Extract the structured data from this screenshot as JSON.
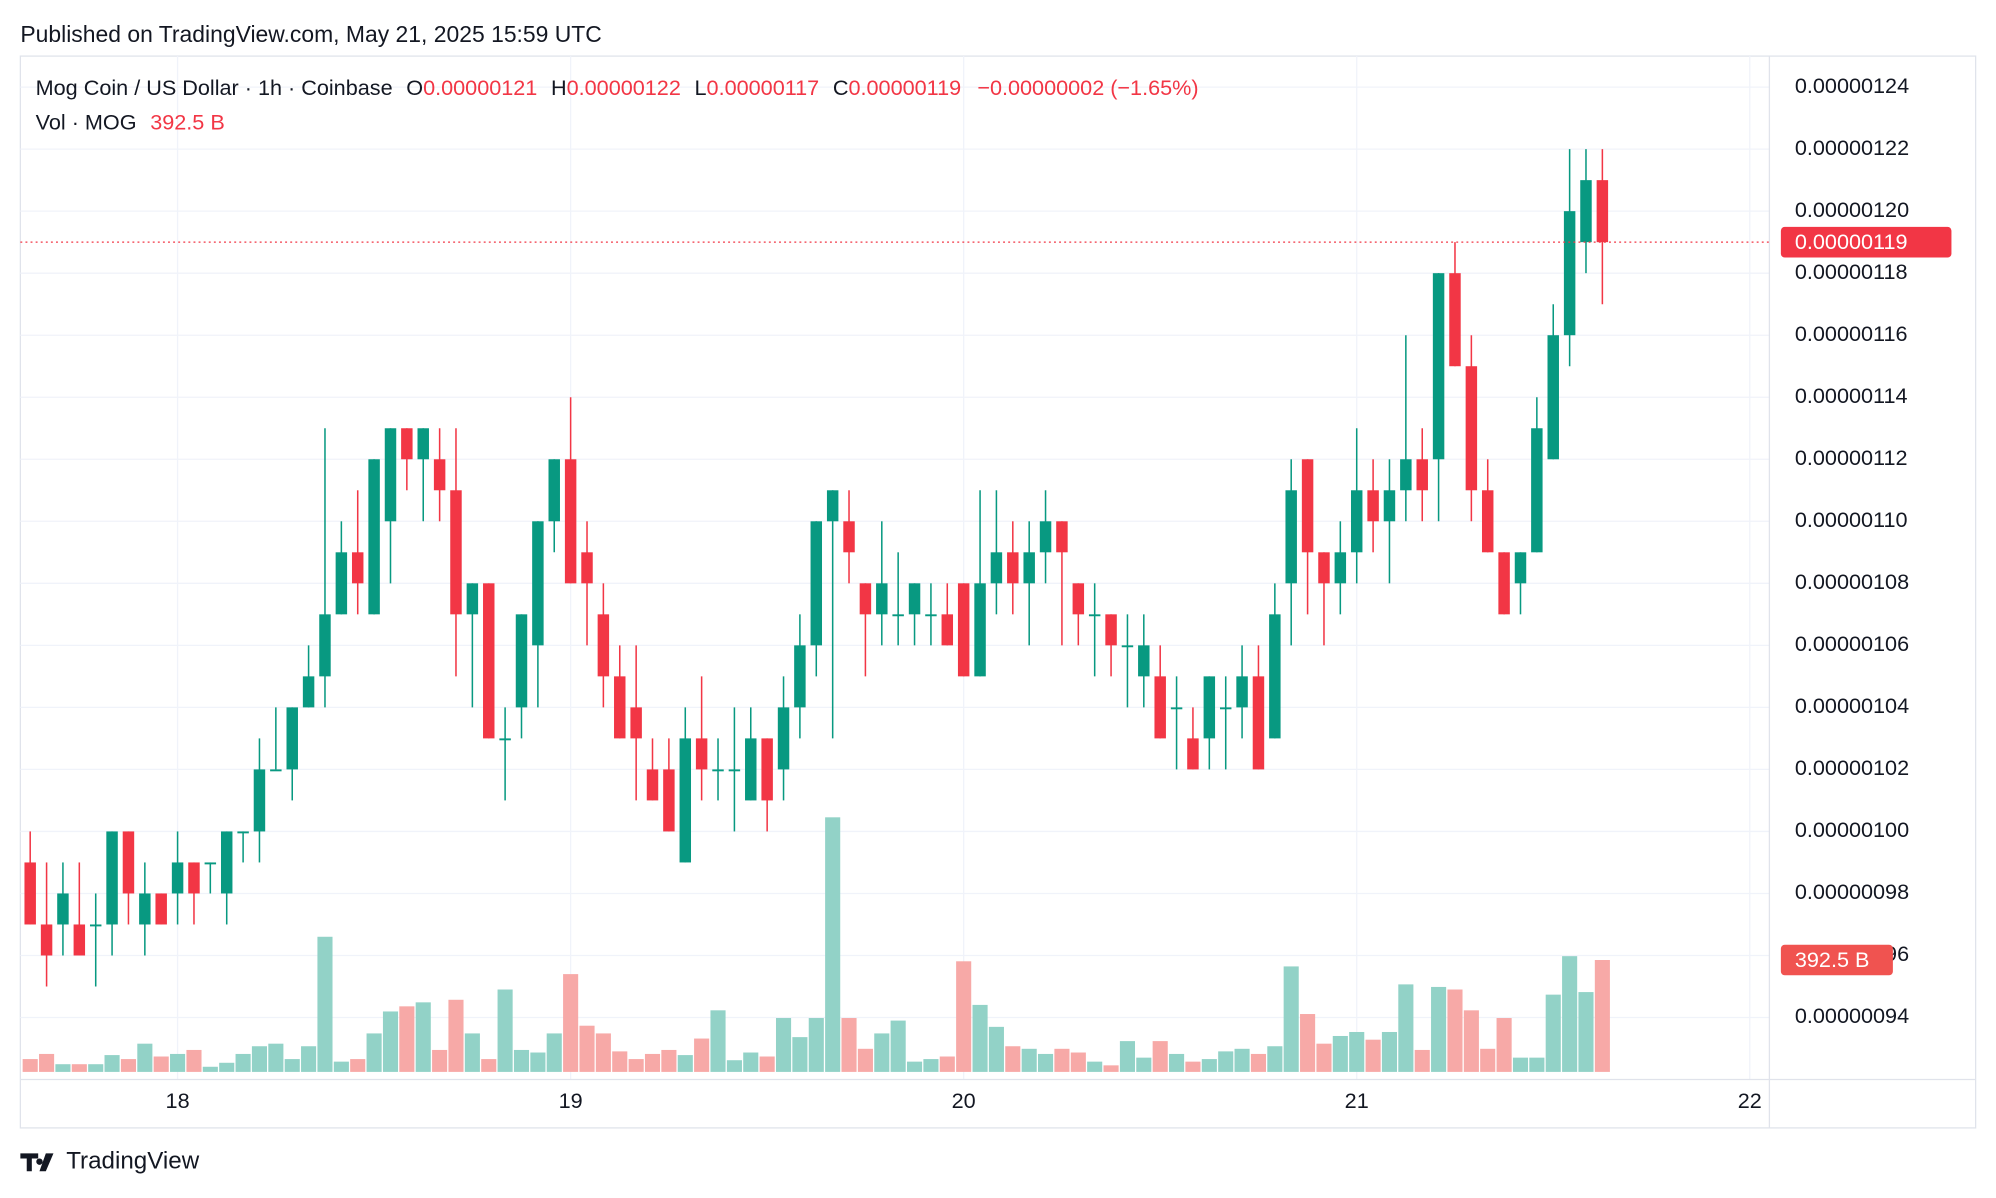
{
  "header": {
    "published": "Published on TradingView.com, May 21, 2025 15:59 UTC"
  },
  "footer": {
    "brand": "TradingView"
  },
  "chart_data": {
    "type": "candlestick",
    "legend": {
      "symbol": "Mog Coin / US Dollar · 1h · Coinbase",
      "open_label": "O",
      "open": "0.00000121",
      "high_label": "H",
      "high": "0.00000122",
      "low_label": "L",
      "low": "0.00000117",
      "close_label": "C",
      "close": "0.00000119",
      "change": "−0.00000002 (−1.65%)",
      "volume_label": "Vol · MOG",
      "volume": "392.5 B"
    },
    "x": [
      17.625,
      17.6667,
      17.7083,
      17.75,
      17.7917,
      17.8333,
      17.875,
      17.9167,
      17.9583,
      18,
      18.0417,
      18.0833,
      18.125,
      18.1667,
      18.2083,
      18.25,
      18.2917,
      18.3333,
      18.375,
      18.4167,
      18.4583,
      18.5,
      18.5417,
      18.5833,
      18.625,
      18.6667,
      18.7083,
      18.75,
      18.7917,
      18.8333,
      18.875,
      18.9167,
      18.9583,
      19,
      19.0417,
      19.0833,
      19.125,
      19.1667,
      19.2083,
      19.25,
      19.2917,
      19.3333,
      19.375,
      19.4167,
      19.4583,
      19.5,
      19.5417,
      19.5833,
      19.625,
      19.6667,
      19.7083,
      19.75,
      19.7917,
      19.8333,
      19.875,
      19.9167,
      19.9583,
      20,
      20.0417,
      20.0833,
      20.125,
      20.1667,
      20.2083,
      20.25,
      20.2917,
      20.3333,
      20.375,
      20.4167,
      20.4583,
      20.5,
      20.5417,
      20.5833,
      20.625,
      20.6667,
      20.7083,
      20.75,
      20.7917,
      20.8333,
      20.875,
      20.9167,
      20.9583,
      21,
      21.0417,
      21.0833,
      21.125,
      21.1667,
      21.2083,
      21.25,
      21.2917,
      21.3333,
      21.375,
      21.4167,
      21.4583,
      21.5,
      21.5417,
      21.5833,
      21.625
    ],
    "open": [
      9.9e-07,
      9.7e-07,
      9.7e-07,
      9.7e-07,
      9.7e-07,
      9.7e-07,
      1e-06,
      9.7e-07,
      9.8e-07,
      9.8e-07,
      9.9e-07,
      9.9e-07,
      9.8e-07,
      1e-06,
      1e-06,
      1.02e-06,
      1.02e-06,
      1.04e-06,
      1.05e-06,
      1.07e-06,
      1.09e-06,
      1.07e-06,
      1.1e-06,
      1.13e-06,
      1.12e-06,
      1.12e-06,
      1.11e-06,
      1.07e-06,
      1.08e-06,
      1.03e-06,
      1.04e-06,
      1.06e-06,
      1.1e-06,
      1.12e-06,
      1.09e-06,
      1.07e-06,
      1.05e-06,
      1.04e-06,
      1.02e-06,
      1.02e-06,
      9.9e-07,
      1.03e-06,
      1.02e-06,
      1.02e-06,
      1.01e-06,
      1.03e-06,
      1.02e-06,
      1.04e-06,
      1.06e-06,
      1.1e-06,
      1.1e-06,
      1.08e-06,
      1.07e-06,
      1.07e-06,
      1.07e-06,
      1.07e-06,
      1.07e-06,
      1.08e-06,
      1.05e-06,
      1.08e-06,
      1.09e-06,
      1.08e-06,
      1.09e-06,
      1.1e-06,
      1.08e-06,
      1.07e-06,
      1.07e-06,
      1.06e-06,
      1.05e-06,
      1.05e-06,
      1.04e-06,
      1.03e-06,
      1.03e-06,
      1.04e-06,
      1.04e-06,
      1.05e-06,
      1.03e-06,
      1.08e-06,
      1.12e-06,
      1.09e-06,
      1.08e-06,
      1.09e-06,
      1.11e-06,
      1.1e-06,
      1.11e-06,
      1.12e-06,
      1.12e-06,
      1.18e-06,
      1.15e-06,
      1.11e-06,
      1.09e-06,
      1.08e-06,
      1.09e-06,
      1.12e-06,
      1.16e-06,
      1.19e-06,
      1.21e-06
    ],
    "high": [
      1e-06,
      9.9e-07,
      9.9e-07,
      9.9e-07,
      9.8e-07,
      1e-06,
      1e-06,
      9.9e-07,
      9.8e-07,
      1e-06,
      9.9e-07,
      9.9e-07,
      1e-06,
      1e-06,
      1.03e-06,
      1.04e-06,
      1.04e-06,
      1.06e-06,
      1.13e-06,
      1.1e-06,
      1.11e-06,
      1.12e-06,
      1.13e-06,
      1.13e-06,
      1.13e-06,
      1.13e-06,
      1.13e-06,
      1.08e-06,
      1.08e-06,
      1.04e-06,
      1.07e-06,
      1.1e-06,
      1.12e-06,
      1.14e-06,
      1.1e-06,
      1.08e-06,
      1.06e-06,
      1.06e-06,
      1.03e-06,
      1.03e-06,
      1.04e-06,
      1.05e-06,
      1.03e-06,
      1.04e-06,
      1.04e-06,
      1.03e-06,
      1.05e-06,
      1.07e-06,
      1.1e-06,
      1.11e-06,
      1.11e-06,
      1.08e-06,
      1.1e-06,
      1.09e-06,
      1.08e-06,
      1.08e-06,
      1.08e-06,
      1.08e-06,
      1.11e-06,
      1.11e-06,
      1.1e-06,
      1.1e-06,
      1.11e-06,
      1.1e-06,
      1.08e-06,
      1.08e-06,
      1.07e-06,
      1.07e-06,
      1.07e-06,
      1.06e-06,
      1.05e-06,
      1.04e-06,
      1.05e-06,
      1.05e-06,
      1.06e-06,
      1.06e-06,
      1.08e-06,
      1.12e-06,
      1.12e-06,
      1.09e-06,
      1.1e-06,
      1.13e-06,
      1.12e-06,
      1.12e-06,
      1.16e-06,
      1.13e-06,
      1.18e-06,
      1.19e-06,
      1.16e-06,
      1.12e-06,
      1.09e-06,
      1.09e-06,
      1.14e-06,
      1.17e-06,
      1.22e-06,
      1.22e-06,
      1.22e-06
    ],
    "low": [
      9.7e-07,
      9.5e-07,
      9.6e-07,
      9.6e-07,
      9.5e-07,
      9.6e-07,
      9.7e-07,
      9.6e-07,
      9.7e-07,
      9.7e-07,
      9.7e-07,
      9.8e-07,
      9.7e-07,
      9.9e-07,
      9.9e-07,
      1.02e-06,
      1.01e-06,
      1.04e-06,
      1.04e-06,
      1.07e-06,
      1.07e-06,
      1.07e-06,
      1.08e-06,
      1.11e-06,
      1.1e-06,
      1.1e-06,
      1.05e-06,
      1.04e-06,
      1.03e-06,
      1.01e-06,
      1.03e-06,
      1.04e-06,
      1.09e-06,
      1.08e-06,
      1.06e-06,
      1.04e-06,
      1.03e-06,
      1.01e-06,
      1.01e-06,
      1e-06,
      9.9e-07,
      1.01e-06,
      1.01e-06,
      1e-06,
      1.01e-06,
      1e-06,
      1.01e-06,
      1.03e-06,
      1.05e-06,
      1.03e-06,
      1.08e-06,
      1.05e-06,
      1.06e-06,
      1.06e-06,
      1.06e-06,
      1.06e-06,
      1.06e-06,
      1.05e-06,
      1.05e-06,
      1.07e-06,
      1.07e-06,
      1.06e-06,
      1.08e-06,
      1.06e-06,
      1.06e-06,
      1.05e-06,
      1.05e-06,
      1.04e-06,
      1.04e-06,
      1.03e-06,
      1.02e-06,
      1.02e-06,
      1.02e-06,
      1.02e-06,
      1.03e-06,
      1.02e-06,
      1.03e-06,
      1.06e-06,
      1.07e-06,
      1.06e-06,
      1.07e-06,
      1.08e-06,
      1.09e-06,
      1.08e-06,
      1.1e-06,
      1.1e-06,
      1.1e-06,
      1.15e-06,
      1.1e-06,
      1.09e-06,
      1.07e-06,
      1.07e-06,
      1.09e-06,
      1.12e-06,
      1.15e-06,
      1.18e-06,
      1.17e-06
    ],
    "close": [
      9.7e-07,
      9.6e-07,
      9.8e-07,
      9.6e-07,
      9.7e-07,
      1e-06,
      9.8e-07,
      9.8e-07,
      9.7e-07,
      9.9e-07,
      9.8e-07,
      9.9e-07,
      1e-06,
      1e-06,
      1.02e-06,
      1.02e-06,
      1.04e-06,
      1.05e-06,
      1.07e-06,
      1.09e-06,
      1.08e-06,
      1.12e-06,
      1.13e-06,
      1.12e-06,
      1.13e-06,
      1.11e-06,
      1.07e-06,
      1.08e-06,
      1.03e-06,
      1.03e-06,
      1.07e-06,
      1.1e-06,
      1.12e-06,
      1.08e-06,
      1.08e-06,
      1.05e-06,
      1.03e-06,
      1.03e-06,
      1.01e-06,
      1e-06,
      1.03e-06,
      1.02e-06,
      1.02e-06,
      1.02e-06,
      1.03e-06,
      1.01e-06,
      1.04e-06,
      1.06e-06,
      1.1e-06,
      1.11e-06,
      1.09e-06,
      1.07e-06,
      1.08e-06,
      1.07e-06,
      1.08e-06,
      1.07e-06,
      1.06e-06,
      1.05e-06,
      1.08e-06,
      1.09e-06,
      1.08e-06,
      1.09e-06,
      1.1e-06,
      1.09e-06,
      1.07e-06,
      1.07e-06,
      1.06e-06,
      1.06e-06,
      1.06e-06,
      1.03e-06,
      1.04e-06,
      1.02e-06,
      1.05e-06,
      1.04e-06,
      1.05e-06,
      1.02e-06,
      1.07e-06,
      1.11e-06,
      1.09e-06,
      1.08e-06,
      1.09e-06,
      1.11e-06,
      1.1e-06,
      1.11e-06,
      1.12e-06,
      1.11e-06,
      1.18e-06,
      1.15e-06,
      1.11e-06,
      1.09e-06,
      1.07e-06,
      1.09e-06,
      1.13e-06,
      1.16e-06,
      1.2e-06,
      1.21e-06,
      1.19e-06
    ],
    "volume": [
      45,
      63,
      27,
      27,
      27,
      59,
      45,
      99,
      54,
      63,
      77,
      18,
      32,
      63,
      90,
      99,
      45,
      90,
      474,
      36,
      45,
      135,
      212,
      230,
      244,
      77,
      253,
      135,
      45,
      289,
      77,
      68,
      135,
      343,
      162,
      135,
      72,
      45,
      63,
      77,
      59,
      117,
      216,
      41,
      68,
      54,
      189,
      122,
      189,
      893,
      189,
      81,
      135,
      180,
      36,
      45,
      54,
      388,
      235,
      158,
      90,
      81,
      63,
      81,
      68,
      36,
      23,
      108,
      50,
      108,
      63,
      36,
      45,
      72,
      81,
      63,
      90,
      370,
      203,
      99,
      126,
      140,
      113,
      140,
      307,
      77,
      298,
      289,
      216,
      81,
      189,
      50,
      50,
      271,
      406,
      280,
      392.5
    ],
    "xlim": [
      17.6,
      22.05
    ],
    "xticks": [
      18,
      19,
      20,
      21,
      22
    ],
    "ylim": [
      9.2e-07,
      1.25e-06
    ],
    "yticks": [
      {
        "value": 9.4e-07,
        "label": "0.00000094"
      },
      {
        "value": 9.6e-07,
        "label": "0.00000096"
      },
      {
        "value": 9.8e-07,
        "label": "0.00000098"
      },
      {
        "value": 1e-06,
        "label": "0.00000100"
      },
      {
        "value": 1.02e-06,
        "label": "0.00000102"
      },
      {
        "value": 1.04e-06,
        "label": "0.00000104"
      },
      {
        "value": 1.06e-06,
        "label": "0.00000106"
      },
      {
        "value": 1.08e-06,
        "label": "0.00000108"
      },
      {
        "value": 1.1e-06,
        "label": "0.00000110"
      },
      {
        "value": 1.12e-06,
        "label": "0.00000112"
      },
      {
        "value": 1.14e-06,
        "label": "0.00000114"
      },
      {
        "value": 1.16e-06,
        "label": "0.00000116"
      },
      {
        "value": 1.18e-06,
        "label": "0.00000118"
      },
      {
        "value": 1.2e-06,
        "label": "0.00000120"
      },
      {
        "value": 1.22e-06,
        "label": "0.00000122"
      },
      {
        "value": 1.24e-06,
        "label": "0.00000124"
      }
    ],
    "grid": true,
    "up_color": "#089981",
    "down_color": "#f23645",
    "up_volume_color": "#92d2c7",
    "down_volume_color": "#f7a9a7"
  }
}
